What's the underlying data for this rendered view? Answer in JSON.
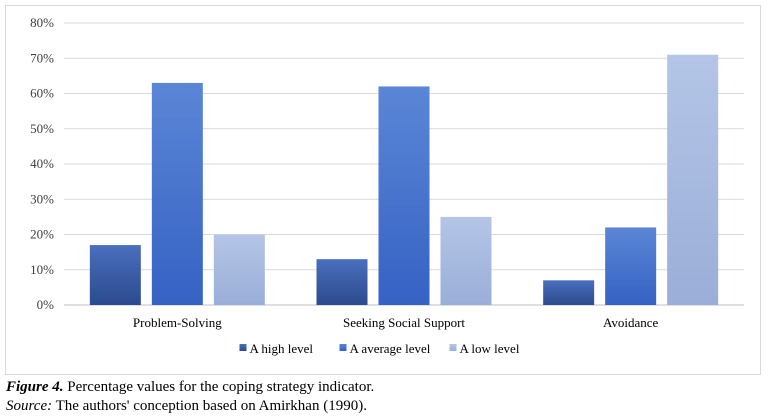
{
  "chart_data": {
    "type": "bar",
    "categories": [
      "Problem-Solving",
      "Seeking Social Support",
      "Avoidance"
    ],
    "series": [
      {
        "name": "A high level",
        "values": [
          17,
          13,
          7
        ],
        "color_top": "#4a6fbd",
        "color_bottom": "#2c4a8e"
      },
      {
        "name": "A average level",
        "values": [
          63,
          62,
          22
        ],
        "color_top": "#5b86d6",
        "color_bottom": "#3562c4"
      },
      {
        "name": "A low level",
        "values": [
          20,
          25,
          71
        ],
        "color_top": "#b4c5e6",
        "color_bottom": "#9aaed8"
      }
    ],
    "ylim": [
      0,
      80
    ],
    "yticks": [
      0,
      10,
      20,
      30,
      40,
      50,
      60,
      70,
      80
    ],
    "ytick_labels": [
      "0%",
      "10%",
      "20%",
      "30%",
      "40%",
      "50%",
      "60%",
      "70%",
      "80%"
    ],
    "grid": true,
    "legend_position": "bottom"
  },
  "caption": {
    "figure_label": "Figure 4.",
    "figure_text": " Percentage values for the coping strategy indicator.",
    "source_label": "Source:",
    "source_text": " The authors' conception based on Amirkhan (1990)."
  }
}
